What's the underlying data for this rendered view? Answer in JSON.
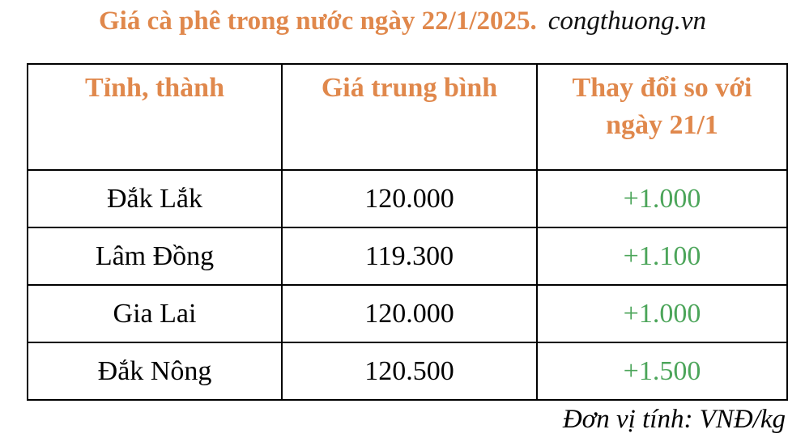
{
  "title": "Giá cà phê trong nước ngày 22/1/2025.",
  "source": "congthuong.vn",
  "table": {
    "headers": [
      "Tỉnh, thành",
      "Giá trung bình",
      "Thay đổi so với ngày 21/1"
    ],
    "rows": [
      {
        "province": "Đắk Lắk",
        "price": "120.000",
        "change": "+1.000"
      },
      {
        "province": "Lâm Đồng",
        "price": "119.300",
        "change": "+1.100"
      },
      {
        "province": "Gia Lai",
        "price": "120.000",
        "change": "+1.000"
      },
      {
        "province": "Đắk Nông",
        "price": "120.500",
        "change": "+1.500"
      }
    ]
  },
  "unit_note": "Đơn vị tính: VNĐ/kg",
  "colors": {
    "header": "#E0884C",
    "change": "#4CA55A"
  }
}
